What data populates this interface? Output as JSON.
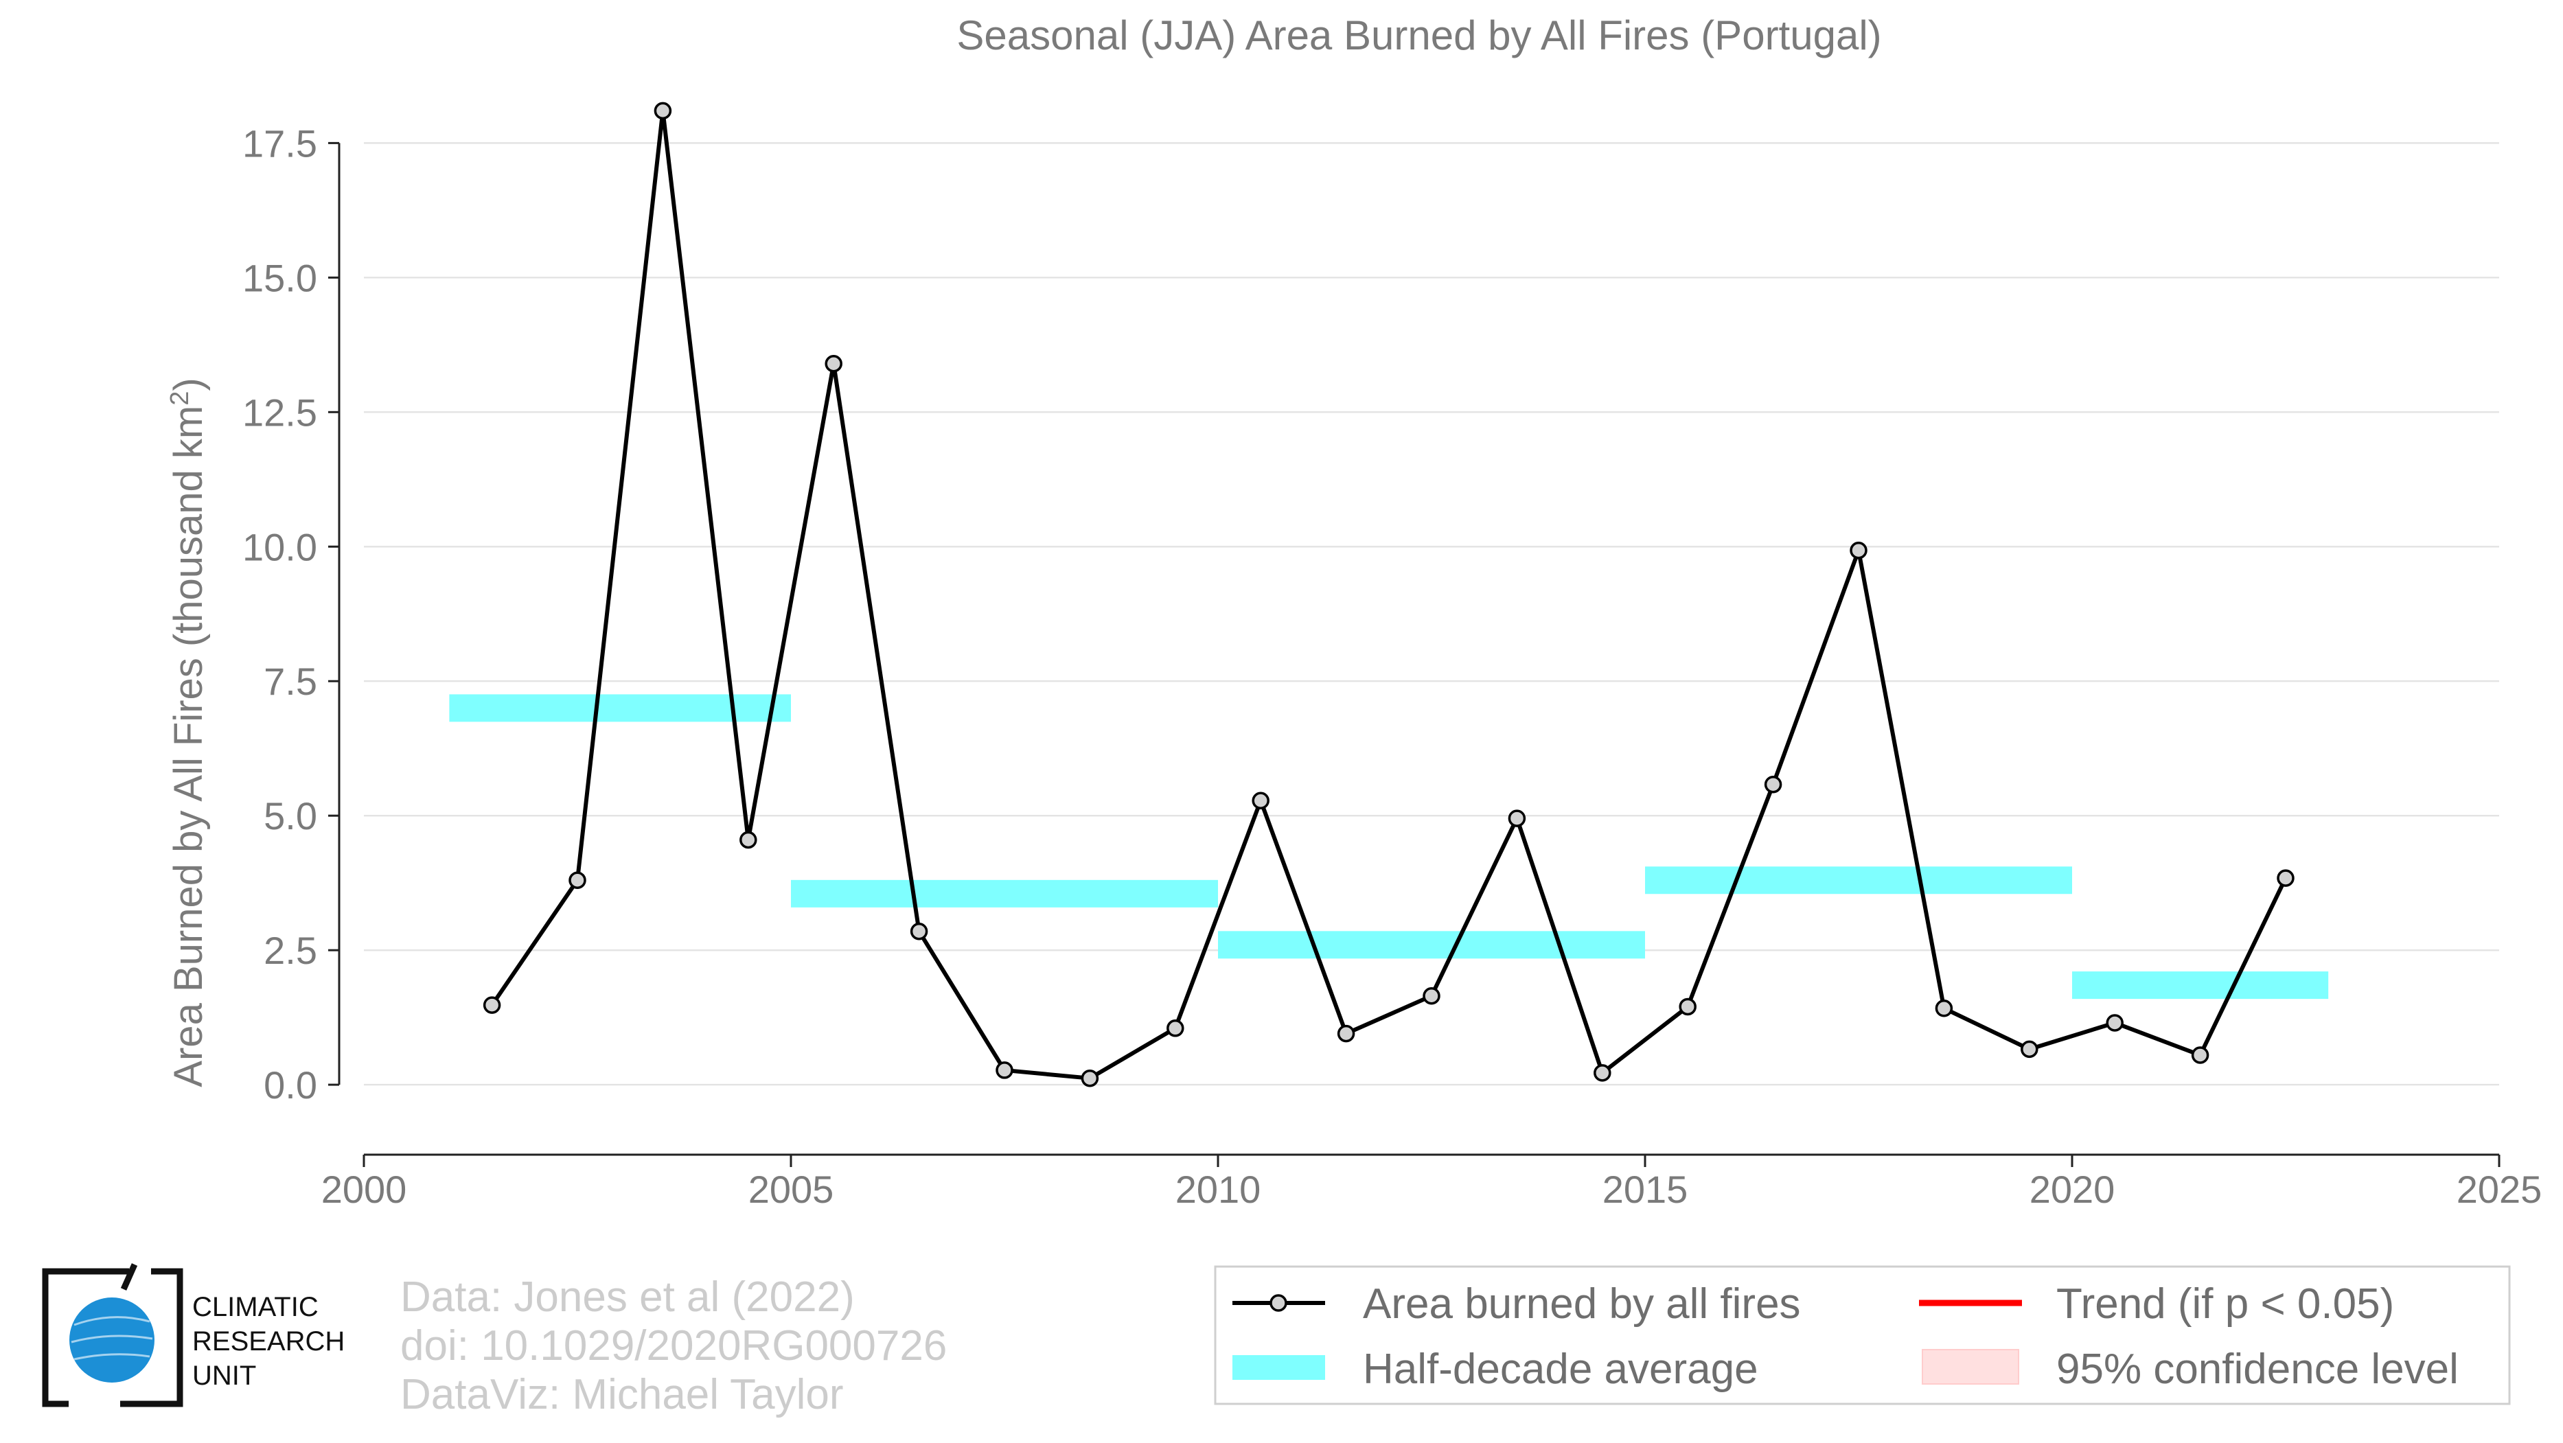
{
  "chart_data": {
    "type": "line",
    "title": "Seasonal (JJA) Area Burned by All Fires (Portugal)",
    "ylabel_main": "Area Burned by All Fires (thousand km",
    "ylabel_sup": "2",
    "ylabel_close": ")",
    "xlim": [
      2000,
      2025
    ],
    "ylim": [
      -1.3,
      18.5
    ],
    "xticks": [
      2000,
      2005,
      2010,
      2015,
      2020,
      2025
    ],
    "xtick_labels": [
      "2000",
      "2005",
      "2010",
      "2015",
      "2020",
      "2025"
    ],
    "yticks": [
      0,
      2.5,
      5,
      7.5,
      10,
      12.5,
      15,
      17.5
    ],
    "ytick_labels": [
      "0.0",
      "2.5",
      "5.0",
      "7.5",
      "10.0",
      "12.5",
      "15.0",
      "17.5"
    ],
    "grid": "horizontal",
    "legend_position": "bottom-right",
    "series": [
      {
        "name": "Area burned by all fires",
        "color": "#000000",
        "marker_color": "#d3d3d3",
        "x": [
          2001.5,
          2002.5,
          2003.5,
          2004.5,
          2005.5,
          2006.5,
          2007.5,
          2008.5,
          2009.5,
          2010.5,
          2011.5,
          2012.5,
          2013.5,
          2014.5,
          2015.5,
          2016.5,
          2017.5,
          2018.5,
          2019.5,
          2020.5,
          2021.5,
          2022.5
        ],
        "values": [
          1.48,
          3.8,
          18.1,
          4.55,
          13.4,
          2.85,
          0.27,
          0.12,
          1.05,
          5.28,
          0.95,
          1.65,
          4.95,
          0.22,
          1.45,
          5.58,
          9.93,
          1.42,
          0.66,
          1.15,
          0.55,
          3.84
        ]
      }
    ],
    "half_decade_average": {
      "name": "Half-decade average",
      "color": "#7fffff",
      "segments": [
        {
          "x0": 2001,
          "x1": 2005,
          "y": 7.0
        },
        {
          "x0": 2005,
          "x1": 2010,
          "y": 3.55
        },
        {
          "x0": 2010,
          "x1": 2015,
          "y": 2.6
        },
        {
          "x0": 2015,
          "x1": 2020,
          "y": 3.8
        },
        {
          "x0": 2020,
          "x1": 2023,
          "y": 1.85
        }
      ]
    },
    "legend": {
      "line_label": "Area burned by all fires",
      "avg_label": "Half-decade average",
      "trend_label": "Trend (if p < 0.05)",
      "ci_label": "95% confidence level",
      "trend_color": "#ff0000",
      "ci_color": "#ffe0e0"
    }
  },
  "credits": {
    "line1": "Data: Jones et al (2022)",
    "line2": "doi: 10.1029/2020RG000726",
    "line3": "DataViz: Michael Taylor"
  },
  "logo": {
    "line1": "CLIMATIC",
    "line2": "RESEARCH",
    "line3": "UNIT",
    "color": "#1c8fd6"
  }
}
